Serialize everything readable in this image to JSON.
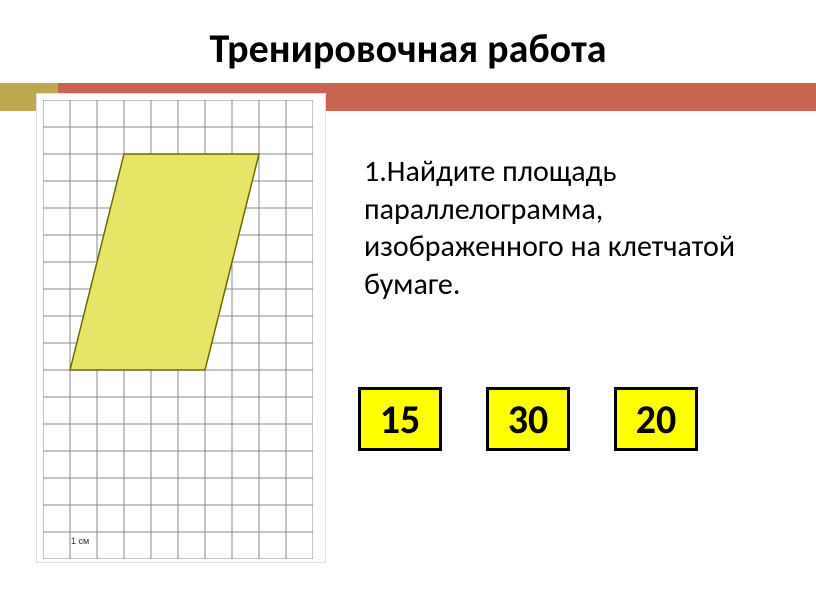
{
  "title": "Тренировочная работа",
  "bar": {
    "gold_color": "#c0a850",
    "red_color": "#c86450"
  },
  "task": {
    "text": "1.Найдите площадь параллелограмма, изображенного на клетчатой бумаге."
  },
  "grid": {
    "cols": 10,
    "rows": 17,
    "cell": 27,
    "stroke": "#888888",
    "bg": "#ffffff",
    "shape": {
      "type": "parallelogram",
      "points_cells": [
        [
          3,
          2
        ],
        [
          8,
          2
        ],
        [
          6,
          10
        ],
        [
          1,
          10
        ]
      ],
      "fill": "#e8e468",
      "stroke": "#6a6a00",
      "stroke_width": 1.5
    },
    "scale_label": "1 см"
  },
  "answers": [
    {
      "value": "15",
      "bg": "#ffff00"
    },
    {
      "value": "30",
      "bg": "#ffff00"
    },
    {
      "value": "20",
      "bg": "#ffff00"
    }
  ],
  "text_color": "#000000"
}
